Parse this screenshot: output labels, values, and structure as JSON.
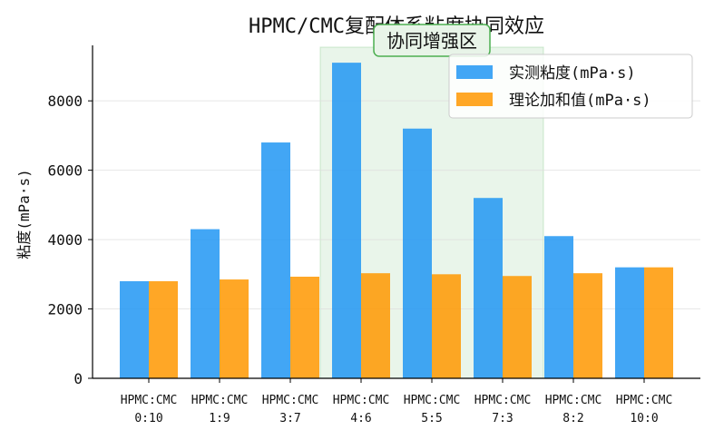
{
  "chart_data": {
    "type": "bar",
    "title": "HPMC/CMC复配体系粘度协同效应",
    "xlabel": "",
    "ylabel": "粘度(mPa·s)",
    "ylim": [
      0,
      9600
    ],
    "yticks": [
      0,
      2000,
      4000,
      6000,
      8000
    ],
    "grid": "horizontal",
    "legend_position": "top-right",
    "categories": [
      "HPMC:CMC\n0:10",
      "HPMC:CMC\n1:9",
      "HPMC:CMC\n3:7",
      "HPMC:CMC\n4:6",
      "HPMC:CMC\n5:5",
      "HPMC:CMC\n7:3",
      "HPMC:CMC\n8:2",
      "HPMC:CMC\n10:0"
    ],
    "series": [
      {
        "name": "实测粘度(mPa·s)",
        "color": "#2196F3",
        "values": [
          2800,
          4300,
          6800,
          9100,
          7200,
          5200,
          4100,
          3200
        ]
      },
      {
        "name": "理论加和值(mPa·s)",
        "color": "#FF9800",
        "values": [
          2800,
          2850,
          2930,
          3030,
          3000,
          2950,
          3030,
          3200
        ]
      }
    ],
    "highlight": {
      "label": "协同增强区",
      "from_category": 3,
      "to_category": 5,
      "color": "#4CAF50"
    }
  }
}
